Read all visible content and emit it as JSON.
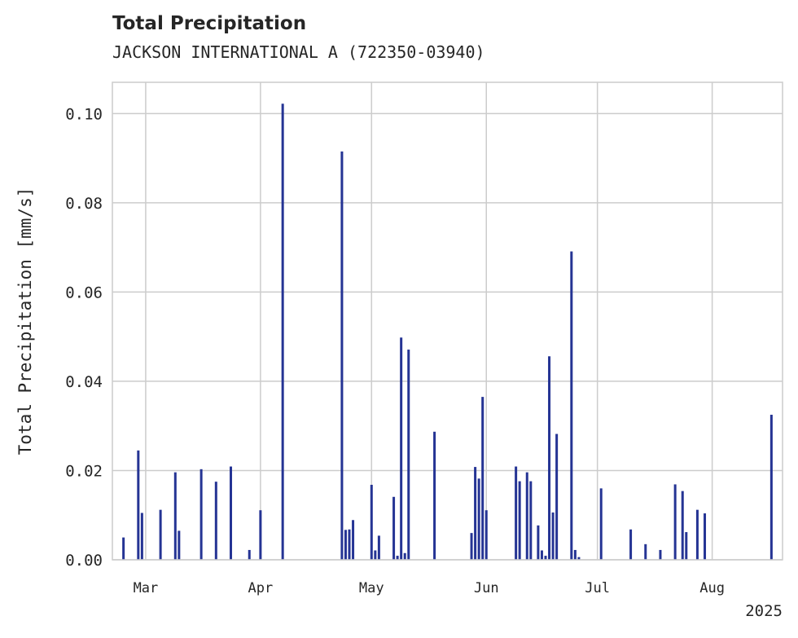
{
  "chart_data": {
    "type": "bar",
    "title": "Total Precipitation",
    "subtitle": "JACKSON INTERNATIONAL A (722350-03940)",
    "xlabel": "",
    "ylabel": "Total Precipitation [mm/s]",
    "xlim": [
      "2025-02-20",
      "2025-08-20"
    ],
    "ylim": [
      0,
      0.107
    ],
    "x_ticks": [
      {
        "date": "2025-03-01",
        "label": "Mar"
      },
      {
        "date": "2025-04-01",
        "label": "Apr"
      },
      {
        "date": "2025-05-01",
        "label": "May"
      },
      {
        "date": "2025-06-01",
        "label": "Jun"
      },
      {
        "date": "2025-07-01",
        "label": "Jul"
      },
      {
        "date": "2025-08-01",
        "label": "Aug"
      }
    ],
    "x_offset_label": "2025",
    "y_ticks": [
      "0.00",
      "0.02",
      "0.04",
      "0.06",
      "0.08",
      "0.10"
    ],
    "y_tick_values": [
      0,
      0.02,
      0.04,
      0.06,
      0.08,
      0.1
    ],
    "grid": true,
    "bar_color": "#253494",
    "series": [
      {
        "x": [
          "2025-02-23",
          "2025-02-27",
          "2025-02-28",
          "2025-03-05",
          "2025-03-09",
          "2025-03-10",
          "2025-03-16",
          "2025-03-20",
          "2025-03-24",
          "2025-03-29",
          "2025-04-01",
          "2025-04-07",
          "2025-04-23",
          "2025-04-24",
          "2025-04-25",
          "2025-04-26",
          "2025-05-01",
          "2025-05-02",
          "2025-05-03",
          "2025-05-07",
          "2025-05-08",
          "2025-05-09",
          "2025-05-10",
          "2025-05-11",
          "2025-05-18",
          "2025-05-28",
          "2025-05-29",
          "2025-05-30",
          "2025-05-31",
          "2025-06-01",
          "2025-06-09",
          "2025-06-10",
          "2025-06-12",
          "2025-06-13",
          "2025-06-15",
          "2025-06-16",
          "2025-06-17",
          "2025-06-18",
          "2025-06-19",
          "2025-06-20",
          "2025-06-24",
          "2025-06-25",
          "2025-06-26",
          "2025-07-02",
          "2025-07-10",
          "2025-07-14",
          "2025-07-18",
          "2025-07-22",
          "2025-07-24",
          "2025-07-25",
          "2025-07-28",
          "2025-07-30",
          "2025-08-17"
        ],
        "values": [
          0.005,
          0.0245,
          0.0105,
          0.0112,
          0.0196,
          0.0065,
          0.0203,
          0.0175,
          0.0209,
          0.0022,
          0.0111,
          0.1022,
          0.0915,
          0.0067,
          0.0068,
          0.0089,
          0.0168,
          0.0021,
          0.0054,
          0.0141,
          0.0009,
          0.0498,
          0.0015,
          0.0471,
          0.0287,
          0.006,
          0.0208,
          0.0182,
          0.0365,
          0.0111,
          0.0209,
          0.0176,
          0.0196,
          0.0176,
          0.0077,
          0.0021,
          0.0009,
          0.0456,
          0.0106,
          0.0282,
          0.0691,
          0.0022,
          0.0006,
          0.016,
          0.0068,
          0.0035,
          0.0022,
          0.0169,
          0.0154,
          0.0062,
          0.0112,
          0.0104,
          0.0325
        ]
      }
    ]
  }
}
